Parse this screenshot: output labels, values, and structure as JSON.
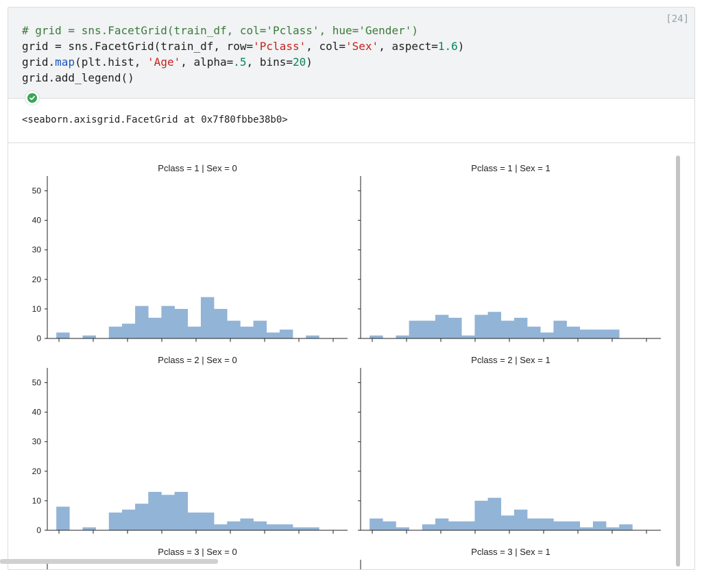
{
  "cell": {
    "execution_count": "[24]",
    "code_lines": [
      [
        {
          "t": "# grid = sns.FacetGrid(train_df, col='Pclass', hue='Gender')",
          "c": "comment"
        }
      ],
      [
        {
          "t": "grid = sns.FacetGrid(train_df, row=",
          "c": ""
        },
        {
          "t": "'Pclass'",
          "c": "string"
        },
        {
          "t": ", col=",
          "c": ""
        },
        {
          "t": "'Sex'",
          "c": "string"
        },
        {
          "t": ", aspect=",
          "c": ""
        },
        {
          "t": "1.6",
          "c": "number"
        },
        {
          "t": ")",
          "c": ""
        }
      ],
      [
        {
          "t": "grid.",
          "c": ""
        },
        {
          "t": "map",
          "c": "func"
        },
        {
          "t": "(plt.hist, ",
          "c": ""
        },
        {
          "t": "'Age'",
          "c": "string"
        },
        {
          "t": ", alpha=",
          "c": ""
        },
        {
          "t": ".5",
          "c": "number"
        },
        {
          "t": ", bins=",
          "c": ""
        },
        {
          "t": "20",
          "c": "number"
        },
        {
          "t": ")",
          "c": ""
        }
      ],
      [
        {
          "t": "grid.add_legend()",
          "c": ""
        }
      ]
    ],
    "status_icon": "check-circle-icon",
    "status_color": "#34a853",
    "output_text": "<seaborn.axisgrid.FacetGrid at 0x7f80fbbe38b0>"
  },
  "chart_data": [
    {
      "type": "bar",
      "title": "Pclass = 1 | Sex = 0",
      "ylim": [
        0,
        55
      ],
      "yticks": [
        0,
        10,
        20,
        30,
        40,
        50
      ],
      "color": "#92b4d6",
      "values": [
        2,
        0,
        1,
        0,
        4,
        5,
        11,
        7,
        11,
        10,
        4,
        14,
        10,
        6,
        4,
        6,
        2,
        3,
        0,
        1
      ]
    },
    {
      "type": "bar",
      "title": "Pclass = 1 | Sex = 1",
      "ylim": [
        0,
        55
      ],
      "yticks": [
        0,
        10,
        20,
        30,
        40,
        50
      ],
      "color": "#92b4d6",
      "values": [
        1,
        0,
        1,
        6,
        6,
        8,
        7,
        1,
        8,
        9,
        6,
        7,
        4,
        2,
        6,
        4,
        3,
        3,
        3,
        0
      ]
    },
    {
      "type": "bar",
      "title": "Pclass = 2 | Sex = 0",
      "ylim": [
        0,
        55
      ],
      "yticks": [
        0,
        10,
        20,
        30,
        40,
        50
      ],
      "color": "#92b4d6",
      "values": [
        8,
        0,
        1,
        0,
        6,
        7,
        9,
        13,
        12,
        13,
        6,
        6,
        2,
        3,
        4,
        3,
        2,
        2,
        1,
        1
      ]
    },
    {
      "type": "bar",
      "title": "Pclass = 2 | Sex = 1",
      "ylim": [
        0,
        55
      ],
      "yticks": [
        0,
        10,
        20,
        30,
        40,
        50
      ],
      "color": "#92b4d6",
      "values": [
        4,
        3,
        1,
        0,
        2,
        4,
        3,
        3,
        10,
        11,
        5,
        7,
        4,
        4,
        3,
        3,
        1,
        3,
        1,
        2
      ]
    },
    {
      "type": "bar",
      "title": "Pclass = 3 | Sex = 0",
      "ylim": [
        0,
        55
      ],
      "yticks": [],
      "color": "#92b4d6",
      "values": []
    },
    {
      "type": "bar",
      "title": "Pclass = 3 | Sex = 1",
      "ylim": [
        0,
        55
      ],
      "yticks": [],
      "color": "#92b4d6",
      "values": []
    }
  ]
}
